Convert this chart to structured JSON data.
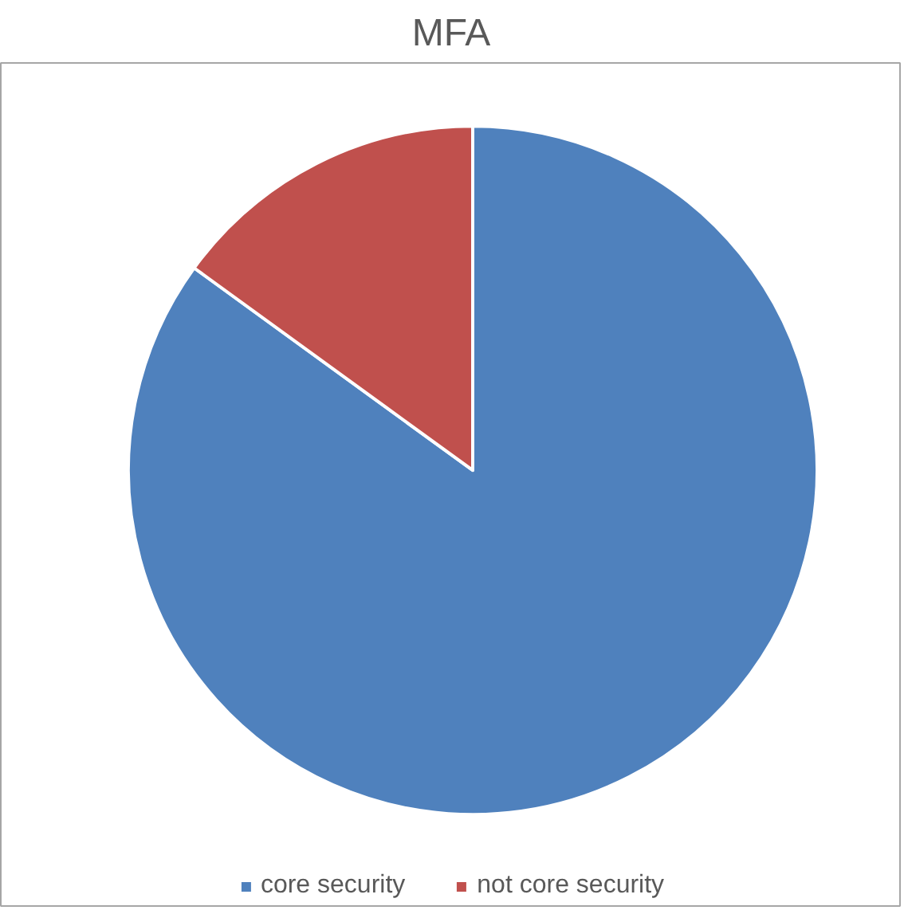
{
  "chart_data": {
    "type": "pie",
    "title": "MFA",
    "categories": [
      "core security",
      "not core security"
    ],
    "values": [
      85,
      15
    ],
    "colors": [
      "#4f81bd",
      "#c0504d"
    ],
    "legend": "bottom"
  }
}
